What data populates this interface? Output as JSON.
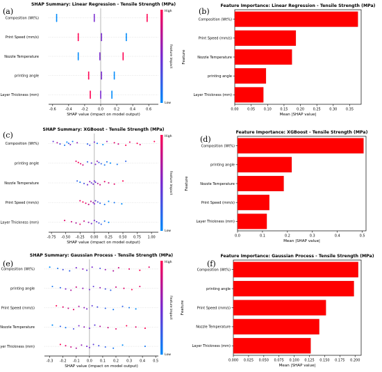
{
  "colors": {
    "bar": "#ff0000",
    "bar_edge": "#cc0000",
    "high": "#ff0052",
    "low": "#008bfb",
    "zero_line": "#999999"
  },
  "chart_data": [
    {
      "panel_label": "(a)",
      "type": "scatter",
      "subtype": "shap-summary",
      "title": "SHAP Summary: Linear Regression - Tensile Strength (MPa)",
      "xlabel": "SHAP value (impact on model output)",
      "ylabel": "",
      "xlim": [
        -0.65,
        0.72
      ],
      "xticks": [
        "-0.6",
        "-0.4",
        "-0.2",
        "0.0",
        "0.2",
        "0.4",
        "0.6"
      ],
      "xtick_values": [
        -0.6,
        -0.4,
        -0.2,
        0.0,
        0.2,
        0.4,
        0.6
      ],
      "colorbar": {
        "label": "Feature impact",
        "high": "High",
        "low": "Low"
      },
      "features": [
        {
          "name": "Composition (Wt%)",
          "clusters": [
            {
              "x": -0.55,
              "c": 0
            },
            {
              "x": -0.08,
              "c": 0.5
            },
            {
              "x": 0.58,
              "c": 1
            }
          ]
        },
        {
          "name": "Print Speed (mm/s)",
          "clusters": [
            {
              "x": -0.28,
              "c": 1
            },
            {
              "x": 0.01,
              "c": 0.5
            },
            {
              "x": 0.32,
              "c": 0
            }
          ]
        },
        {
          "name": "Nozzle Temperature",
          "clusters": [
            {
              "x": -0.28,
              "c": 0
            },
            {
              "x": -0.01,
              "c": 0.5
            },
            {
              "x": 0.28,
              "c": 1
            }
          ]
        },
        {
          "name": "printing angle",
          "clusters": [
            {
              "x": -0.15,
              "c": 1
            },
            {
              "x": 0.01,
              "c": 0.5
            },
            {
              "x": 0.17,
              "c": 0
            }
          ]
        },
        {
          "name": "Layer Thickness (mm)",
          "clusters": [
            {
              "x": -0.13,
              "c": 1
            },
            {
              "x": 0.0,
              "c": 0.5
            },
            {
              "x": 0.14,
              "c": 0
            }
          ]
        }
      ]
    },
    {
      "panel_label": "(b)",
      "type": "bar",
      "orientation": "horizontal",
      "title": "Feature Importance: Linear Regression - Tensile Strength (MPa)",
      "xlabel": "Mean |SHAP value|",
      "ylabel": "Feature",
      "xlim": [
        0,
        0.385
      ],
      "xticks": [
        "0.00",
        "0.05",
        "0.10",
        "0.15",
        "0.20",
        "0.25",
        "0.30",
        "0.35"
      ],
      "xtick_values": [
        0,
        0.05,
        0.1,
        0.15,
        0.2,
        0.25,
        0.3,
        0.35
      ],
      "categories": [
        "Composition (Wt%)",
        "Print Speed (mm/s)",
        "Nozzle Temperature",
        "printing angle",
        "Layer Thickness (mm)"
      ],
      "values": [
        0.375,
        0.186,
        0.174,
        0.095,
        0.087
      ]
    },
    {
      "panel_label": "(c)",
      "type": "scatter",
      "subtype": "shap-summary",
      "title": "SHAP Summary: XGBoost - Tensile Strength (MPa)",
      "xlabel": "SHAP value (impact on model output)",
      "ylabel": "",
      "xlim": [
        -0.8,
        1.12
      ],
      "xticks": [
        "-0.75",
        "-0.50",
        "-0.25",
        "0.00",
        "0.25",
        "0.50",
        "0.75",
        "1.00"
      ],
      "xtick_values": [
        -0.75,
        -0.5,
        -0.25,
        0,
        0.25,
        0.5,
        0.75,
        1.0
      ],
      "colorbar": {
        "label": "Feature impact",
        "high": "High",
        "low": "Low"
      },
      "features": [
        {
          "name": "Composition (Wt%)",
          "points": [
            [
              -0.72,
              0.4
            ],
            [
              -0.65,
              0.7
            ],
            [
              -0.6,
              0.3
            ],
            [
              -0.52,
              0.1
            ],
            [
              -0.48,
              0.0
            ],
            [
              -0.45,
              0.2
            ],
            [
              -0.42,
              0.5
            ],
            [
              -0.38,
              0.1
            ],
            [
              -0.3,
              0.6
            ],
            [
              -0.12,
              0.2
            ],
            [
              -0.08,
              0.3
            ],
            [
              0.0,
              0.5
            ],
            [
              0.05,
              0.1
            ],
            [
              0.15,
              0.0
            ],
            [
              0.22,
              0.6
            ],
            [
              0.35,
              0.9
            ],
            [
              0.42,
              0.8
            ],
            [
              0.55,
              1.0
            ],
            [
              0.62,
              0.9
            ],
            [
              0.75,
              1.0
            ],
            [
              0.8,
              0.9
            ],
            [
              1.05,
              1.0
            ]
          ]
        },
        {
          "name": "printing angle",
          "points": [
            [
              -0.32,
              0.9
            ],
            [
              -0.28,
              1.0
            ],
            [
              -0.24,
              0.9
            ],
            [
              -0.2,
              0.8
            ],
            [
              -0.12,
              0.2
            ],
            [
              -0.05,
              0.4
            ],
            [
              0.02,
              0.5
            ],
            [
              0.05,
              0.6
            ],
            [
              0.08,
              0.3
            ],
            [
              0.12,
              0.2
            ],
            [
              0.18,
              0.1
            ],
            [
              0.22,
              0.1
            ],
            [
              0.28,
              0.0
            ],
            [
              0.4,
              0.1
            ],
            [
              0.55,
              0.2
            ]
          ]
        },
        {
          "name": "Nozzle Temperature",
          "points": [
            [
              -0.3,
              0.2
            ],
            [
              -0.25,
              0.1
            ],
            [
              -0.18,
              0.3
            ],
            [
              -0.12,
              0.5
            ],
            [
              -0.08,
              0.6
            ],
            [
              -0.05,
              0.4
            ],
            [
              -0.02,
              0.5
            ],
            [
              0.0,
              0.5
            ],
            [
              0.02,
              0.4
            ],
            [
              0.06,
              0.7
            ],
            [
              0.1,
              0.8
            ],
            [
              0.18,
              0.9
            ],
            [
              0.25,
              0.8
            ],
            [
              0.35,
              0.9
            ],
            [
              0.5,
              1.0
            ]
          ]
        },
        {
          "name": "Print Speed (mm/s)",
          "points": [
            [
              -0.25,
              0.9
            ],
            [
              -0.2,
              1.0
            ],
            [
              -0.15,
              0.9
            ],
            [
              -0.1,
              0.8
            ],
            [
              -0.06,
              0.7
            ],
            [
              -0.02,
              0.6
            ],
            [
              0.0,
              0.5
            ],
            [
              0.02,
              0.4
            ],
            [
              0.06,
              0.3
            ],
            [
              0.1,
              0.2
            ],
            [
              0.18,
              0.1
            ],
            [
              0.25,
              0.0
            ],
            [
              0.35,
              0.1
            ],
            [
              0.48,
              0.0
            ]
          ]
        },
        {
          "name": "Layer Thickness (mm)",
          "points": [
            [
              -0.52,
              0.9
            ],
            [
              -0.4,
              0.8
            ],
            [
              -0.32,
              0.7
            ],
            [
              -0.25,
              0.9
            ],
            [
              -0.18,
              0.8
            ],
            [
              -0.1,
              0.6
            ],
            [
              -0.05,
              0.5
            ],
            [
              0.0,
              0.5
            ],
            [
              0.04,
              0.4
            ],
            [
              0.08,
              0.3
            ],
            [
              0.12,
              0.2
            ],
            [
              0.18,
              0.1
            ],
            [
              0.25,
              0.0
            ]
          ]
        }
      ]
    },
    {
      "panel_label": "(d)",
      "type": "bar",
      "orientation": "horizontal",
      "title": "Feature Importance: XGBoost - Tensile Strength (MPa)",
      "xlabel": "Mean |SHAP value|",
      "ylabel": "Feature",
      "xlim": [
        0,
        0.515
      ],
      "xticks": [
        "0.0",
        "0.1",
        "0.2",
        "0.3",
        "0.4",
        "0.5"
      ],
      "xtick_values": [
        0,
        0.1,
        0.2,
        0.3,
        0.4,
        0.5
      ],
      "categories": [
        "Composition (Wt%)",
        "printing angle",
        "Nozzle Temperature",
        "Print Speed (mm/s)",
        "Layer Thickness (mm)"
      ],
      "values": [
        0.505,
        0.217,
        0.185,
        0.127,
        0.117
      ]
    },
    {
      "panel_label": "(e)",
      "type": "scatter",
      "subtype": "shap-summary",
      "title": "SHAP Summary: Gaussian Process - Tensile Strength (MPa)",
      "xlabel": "SHAP value (impact on model output)",
      "ylabel": "",
      "xlim": [
        -0.34,
        0.52
      ],
      "xticks": [
        "-0.3",
        "-0.2",
        "-0.1",
        "0.0",
        "0.1",
        "0.2",
        "0.3",
        "0.4",
        "0.5"
      ],
      "xtick_values": [
        -0.3,
        -0.2,
        -0.1,
        0,
        0.1,
        0.2,
        0.3,
        0.4,
        0.5
      ],
      "colorbar": {
        "label": "Feature impact",
        "high": "High",
        "low": "Low"
      },
      "features": [
        {
          "name": "Composition (Wt%)",
          "points": [
            [
              -0.3,
              0.0
            ],
            [
              -0.24,
              0.1
            ],
            [
              -0.2,
              0.3
            ],
            [
              -0.15,
              0.2
            ],
            [
              -0.1,
              0.5
            ],
            [
              -0.05,
              0.6
            ],
            [
              -0.02,
              0.4
            ],
            [
              0.02,
              0.5
            ],
            [
              0.08,
              0.3
            ],
            [
              0.12,
              0.6
            ],
            [
              0.18,
              0.7
            ],
            [
              0.22,
              0.8
            ],
            [
              0.3,
              0.9
            ],
            [
              0.38,
              1.0
            ],
            [
              0.45,
              0.9
            ]
          ]
        },
        {
          "name": "printing angle",
          "points": [
            [
              -0.28,
              0.1
            ],
            [
              -0.22,
              0.2
            ],
            [
              -0.18,
              0.5
            ],
            [
              -0.14,
              0.7
            ],
            [
              -0.1,
              0.8
            ],
            [
              -0.05,
              0.6
            ],
            [
              0.0,
              0.5
            ],
            [
              0.03,
              0.4
            ],
            [
              0.08,
              0.6
            ],
            [
              0.12,
              0.3
            ],
            [
              0.16,
              0.2
            ],
            [
              0.2,
              0.8
            ],
            [
              0.26,
              0.9
            ],
            [
              0.32,
              1.0
            ],
            [
              0.38,
              0.9
            ]
          ]
        },
        {
          "name": "Print Speed (mm/s)",
          "points": [
            [
              -0.25,
              1.0
            ],
            [
              -0.2,
              0.9
            ],
            [
              -0.16,
              0.8
            ],
            [
              -0.12,
              0.9
            ],
            [
              -0.08,
              0.7
            ],
            [
              -0.04,
              0.6
            ],
            [
              -0.02,
              0.5
            ],
            [
              0.02,
              0.4
            ],
            [
              0.06,
              0.3
            ],
            [
              0.12,
              0.2
            ],
            [
              0.18,
              0.1
            ],
            [
              0.25,
              0.2
            ],
            [
              0.3,
              0.1
            ],
            [
              0.35,
              0.0
            ]
          ]
        },
        {
          "name": "Nozzle Temperature",
          "points": [
            [
              -0.28,
              0.0
            ],
            [
              -0.22,
              0.2
            ],
            [
              -0.18,
              0.1
            ],
            [
              -0.12,
              0.3
            ],
            [
              -0.08,
              0.5
            ],
            [
              -0.04,
              0.6
            ],
            [
              0.0,
              0.5
            ],
            [
              0.04,
              0.4
            ],
            [
              0.08,
              0.7
            ],
            [
              0.14,
              0.8
            ],
            [
              0.2,
              0.9
            ],
            [
              0.28,
              1.0
            ],
            [
              0.35,
              0.9
            ],
            [
              0.42,
              1.0
            ]
          ]
        },
        {
          "name": "Layer Thickness (mm)",
          "points": [
            [
              -0.22,
              1.0
            ],
            [
              -0.18,
              0.9
            ],
            [
              -0.14,
              0.8
            ],
            [
              -0.1,
              0.7
            ],
            [
              -0.06,
              0.6
            ],
            [
              -0.02,
              0.5
            ],
            [
              0.0,
              0.5
            ],
            [
              0.03,
              0.4
            ],
            [
              0.07,
              0.3
            ],
            [
              0.12,
              0.2
            ],
            [
              0.18,
              0.1
            ],
            [
              0.25,
              0.0
            ],
            [
              0.42,
              0.1
            ]
          ]
        }
      ]
    },
    {
      "panel_label": "(f)",
      "type": "bar",
      "orientation": "horizontal",
      "title": "Feature Importance: Gaussian Process - Tensile Strength (MPa)",
      "xlabel": "Mean |SHAP value|",
      "ylabel": "Feature",
      "xlim": [
        0,
        0.21
      ],
      "xticks": [
        "0.000",
        "0.025",
        "0.050",
        "0.075",
        "0.100",
        "0.125",
        "0.150",
        "0.175",
        "0.200"
      ],
      "xtick_values": [
        0,
        0.025,
        0.05,
        0.075,
        0.1,
        0.125,
        0.15,
        0.175,
        0.2
      ],
      "categories": [
        "Composition (Wt%)",
        "printing angle",
        "Print Speed (mm/s)",
        "Nozzle Temperature",
        "Layer Thickness (mm)"
      ],
      "values": [
        0.205,
        0.198,
        0.152,
        0.141,
        0.127
      ]
    }
  ]
}
